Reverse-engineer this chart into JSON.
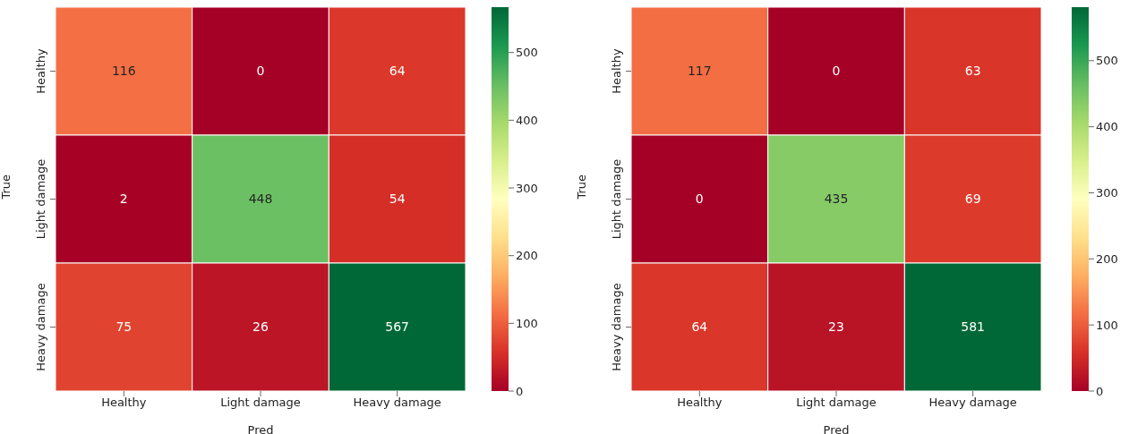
{
  "chart_data": [
    {
      "type": "heatmap",
      "xlabel": "Pred",
      "ylabel": "True",
      "categories": [
        "Healthy",
        "Light damage",
        "Heavy damage"
      ],
      "y_categories": [
        "Healthy",
        "Light damage",
        "Heavy damage"
      ],
      "cells": [
        [
          116,
          0,
          64
        ],
        [
          2,
          448,
          54
        ],
        [
          75,
          26,
          567
        ]
      ],
      "data_labels": true,
      "clim": [
        0,
        567
      ],
      "cticks": [
        0,
        100,
        200,
        300,
        400,
        500
      ]
    },
    {
      "type": "heatmap",
      "xlabel": "Pred",
      "ylabel": "True",
      "categories": [
        "Healthy",
        "Light damage",
        "Heavy damage"
      ],
      "y_categories": [
        "Healthy",
        "Light damage",
        "Heavy damage"
      ],
      "cells": [
        [
          117,
          0,
          63
        ],
        [
          0,
          435,
          69
        ],
        [
          64,
          23,
          581
        ]
      ],
      "data_labels": true,
      "clim": [
        0,
        581
      ],
      "cticks": [
        0,
        100,
        200,
        300,
        400,
        500
      ]
    }
  ]
}
